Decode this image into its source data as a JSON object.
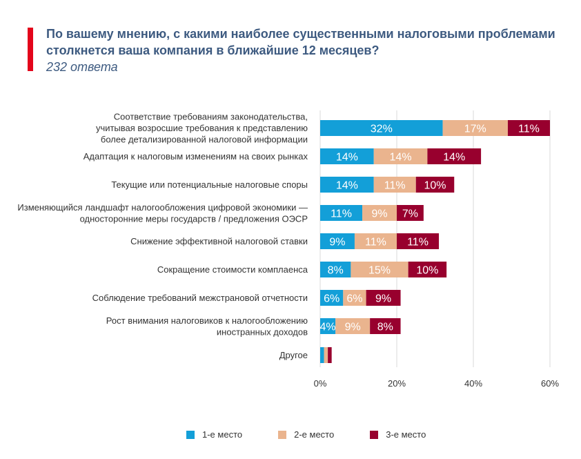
{
  "header": {
    "title": "По вашему мнению, с какими наиболее существенными налоговыми проблемами столкнется ваша компания в ближайшие 12 месяцев?",
    "subtitle": "232 ответа"
  },
  "colors": {
    "accent": "#e3051b",
    "series": [
      "#139fd8",
      "#eab48e",
      "#98002e"
    ]
  },
  "chart_data": {
    "type": "bar",
    "orientation": "horizontal",
    "stacked": true,
    "categories": [
      [
        "Соответствие требованиям законодательства,",
        "учитывая возросшие требования к представлению",
        "более детализированной налоговой информации"
      ],
      [
        "Адаптация к налоговым изменениям на своих рынках"
      ],
      [
        "Текущие или потенциальные налоговые споры"
      ],
      [
        "Изменяющийся ландшафт налогообложения цифровой экономики —",
        "односторонние меры государств / предложения ОЭСР"
      ],
      [
        "Снижение эффективной налоговой ставки"
      ],
      [
        "Сокращение стоимости комплаенса"
      ],
      [
        "Соблюдение требований межстрановой отчетности"
      ],
      [
        "Рост внимания налоговиков к налогообложению",
        "иностранных доходов"
      ],
      [
        "Другое"
      ]
    ],
    "series": [
      {
        "name": "1-е место",
        "values": [
          32,
          14,
          14,
          11,
          9,
          8,
          6,
          4,
          1
        ]
      },
      {
        "name": "2-е место",
        "values": [
          17,
          14,
          11,
          9,
          11,
          15,
          6,
          9,
          1
        ]
      },
      {
        "name": "3-е место",
        "values": [
          11,
          14,
          10,
          7,
          11,
          10,
          9,
          8,
          1
        ]
      }
    ],
    "value_labels": [
      [
        "32%",
        "17%",
        "11%"
      ],
      [
        "14%",
        "14%",
        "14%"
      ],
      [
        "14%",
        "11%",
        "10%"
      ],
      [
        "11%",
        "9%",
        "7%"
      ],
      [
        "9%",
        "11%",
        "11%"
      ],
      [
        "8%",
        "15%",
        "10%"
      ],
      [
        "6%",
        "6%",
        "9%"
      ],
      [
        "4%",
        "9%",
        "8%"
      ],
      [
        "",
        "",
        ""
      ]
    ],
    "xlim": [
      0,
      60
    ],
    "xticks": [
      "0%",
      "20%",
      "40%",
      "60%"
    ],
    "xtick_values": [
      0,
      20,
      40,
      60
    ],
    "grid": true,
    "legend_position": "bottom"
  }
}
